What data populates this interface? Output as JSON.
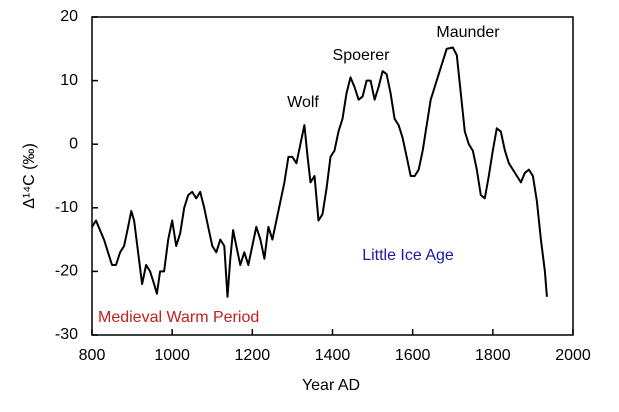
{
  "chart_data": {
    "type": "line",
    "xlabel": "Year AD",
    "ylabel": "Δ¹⁴C (‰)",
    "x": [
      800,
      810,
      820,
      830,
      840,
      850,
      860,
      870,
      880,
      890,
      898,
      905,
      915,
      925,
      935,
      945,
      955,
      962,
      970,
      980,
      990,
      1000,
      1010,
      1020,
      1030,
      1040,
      1050,
      1060,
      1070,
      1080,
      1090,
      1100,
      1110,
      1120,
      1130,
      1138,
      1145,
      1152,
      1160,
      1170,
      1180,
      1190,
      1200,
      1210,
      1220,
      1230,
      1240,
      1250,
      1260,
      1270,
      1280,
      1290,
      1300,
      1310,
      1320,
      1330,
      1338,
      1345,
      1355,
      1365,
      1375,
      1385,
      1395,
      1405,
      1415,
      1425,
      1435,
      1445,
      1455,
      1465,
      1475,
      1485,
      1495,
      1505,
      1515,
      1525,
      1535,
      1545,
      1555,
      1565,
      1575,
      1585,
      1595,
      1605,
      1615,
      1625,
      1635,
      1645,
      1655,
      1665,
      1675,
      1685,
      1700,
      1710,
      1720,
      1730,
      1740,
      1750,
      1760,
      1770,
      1780,
      1790,
      1800,
      1810,
      1820,
      1830,
      1840,
      1850,
      1860,
      1870,
      1880,
      1890,
      1900,
      1910,
      1920,
      1930,
      1935
    ],
    "values": [
      -13,
      -12,
      -13.5,
      -15,
      -17,
      -19,
      -19,
      -17,
      -16,
      -13,
      -10.5,
      -12,
      -17,
      -22,
      -19,
      -20,
      -22,
      -23.5,
      -20,
      -20,
      -15,
      -12,
      -16,
      -14,
      -10,
      -8,
      -7.5,
      -8.5,
      -7.5,
      -10,
      -13,
      -16,
      -17,
      -15,
      -16,
      -24,
      -18,
      -13.5,
      -16,
      -19,
      -17,
      -19,
      -16,
      -13,
      -15,
      -18,
      -13,
      -15,
      -12,
      -9,
      -6,
      -2,
      -2,
      -3,
      0,
      3,
      -2,
      -6,
      -5,
      -12,
      -11,
      -7,
      -2,
      -1,
      2,
      4,
      8,
      10.5,
      9,
      7,
      7.5,
      10,
      10,
      7,
      9,
      11.5,
      11,
      8,
      4,
      3,
      1,
      -2,
      -5,
      -5,
      -4,
      -1,
      3,
      7,
      9,
      11,
      13,
      15,
      15.2,
      14,
      8,
      2,
      0,
      -1,
      -4,
      -8,
      -8.5,
      -5,
      -1,
      2.5,
      2,
      -1,
      -3,
      -4,
      -5,
      -6,
      -4.5,
      -4,
      -5,
      -9,
      -15,
      -20,
      -24
    ],
    "color": "#000000",
    "xlim": [
      800,
      2000
    ],
    "xticks": [
      800,
      1000,
      1200,
      1400,
      1600,
      1800,
      2000
    ],
    "ylim": [
      -30,
      20
    ],
    "yticks": [
      -30,
      -20,
      -10,
      0,
      10,
      20
    ],
    "annotations": [
      {
        "text": "Wolf",
        "color": "#000000"
      },
      {
        "text": "Spoerer",
        "color": "#000000"
      },
      {
        "text": "Maunder",
        "color": "#000000"
      },
      {
        "text": "Little Ice Age",
        "color": "#1a1aa6"
      },
      {
        "text": "Medieval Warm Period",
        "color": "#c0201e"
      }
    ]
  }
}
